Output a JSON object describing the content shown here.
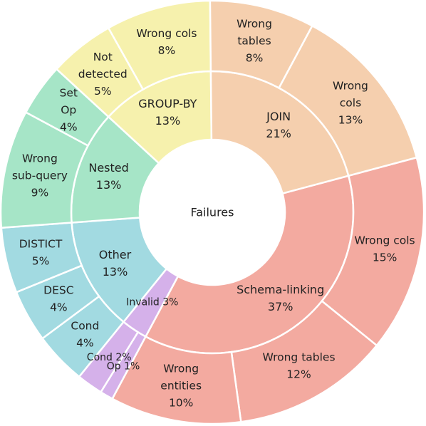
{
  "chart_data": {
    "type": "sunburst",
    "center_label": "Failures",
    "inner": [
      {
        "name": "Schema-linking",
        "value": 37,
        "pct": "37%",
        "color": "#f3aaa0"
      },
      {
        "name": "Invalid",
        "value": 3,
        "pct": "3%",
        "color": "#d5b1ea"
      },
      {
        "name": "Other",
        "value": 13,
        "pct": "13%",
        "color": "#a2dae1"
      },
      {
        "name": "Nested",
        "value": 13,
        "pct": "13%",
        "color": "#a6e5c7"
      },
      {
        "name": "GROUP-BY",
        "value": 13,
        "pct": "13%",
        "color": "#f6f1ad"
      },
      {
        "name": "JOIN",
        "value": 21,
        "pct": "21%",
        "color": "#f5cfae"
      }
    ],
    "outer": [
      {
        "parent": "Schema-linking",
        "name": "Wrong cols",
        "value": 15,
        "pct": "15%",
        "color": "#f3aaa0"
      },
      {
        "parent": "Schema-linking",
        "name": "Wrong tables",
        "value": 12,
        "pct": "12%",
        "color": "#f3aaa0"
      },
      {
        "parent": "Schema-linking",
        "name": "Wrong entities",
        "value": 10,
        "pct": "10%",
        "color": "#f3aaa0"
      },
      {
        "parent": "Invalid",
        "name": "Op",
        "value": 1,
        "pct": "1%",
        "color": "#d5b1ea"
      },
      {
        "parent": "Invalid",
        "name": "Cond",
        "value": 2,
        "pct": "2%",
        "color": "#d5b1ea"
      },
      {
        "parent": "Other",
        "name": "Cond",
        "value": 4,
        "pct": "4%",
        "color": "#a2dae1"
      },
      {
        "parent": "Other",
        "name": "DESC",
        "value": 4,
        "pct": "4%",
        "color": "#a2dae1"
      },
      {
        "parent": "Other",
        "name": "DISTICT",
        "value": 5,
        "pct": "5%",
        "color": "#a2dae1"
      },
      {
        "parent": "Nested",
        "name": "Wrong sub-query",
        "value": 9,
        "pct": "9%",
        "color": "#a6e5c7"
      },
      {
        "parent": "Nested",
        "name": "Set Op",
        "value": 4,
        "pct": "4%",
        "color": "#a6e5c7"
      },
      {
        "parent": "GROUP-BY",
        "name": "Not detected",
        "value": 5,
        "pct": "5%",
        "color": "#f6f1ad"
      },
      {
        "parent": "GROUP-BY",
        "name": "Wrong cols",
        "value": 8,
        "pct": "8%",
        "color": "#f6f1ad"
      },
      {
        "parent": "JOIN",
        "name": "Wrong tables",
        "value": 8,
        "pct": "8%",
        "color": "#f5cfae"
      },
      {
        "parent": "JOIN",
        "name": "Wrong cols",
        "value": 13,
        "pct": "13%",
        "color": "#f5cfae"
      }
    ]
  }
}
